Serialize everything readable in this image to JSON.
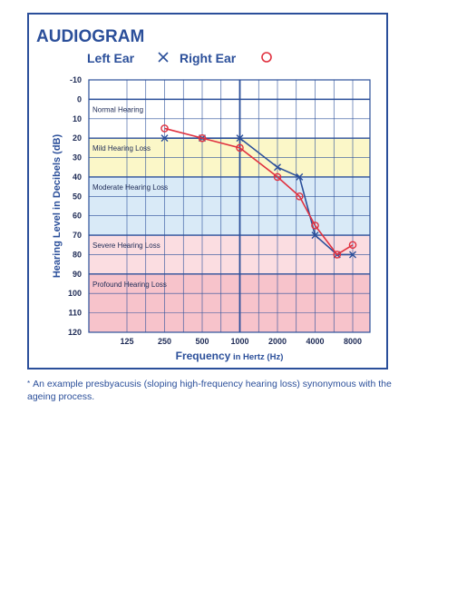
{
  "chart_data": {
    "type": "line",
    "title": "AUDIOGRAM",
    "legend": [
      {
        "name": "Left Ear",
        "marker": "×",
        "color": "#2b4f9a"
      },
      {
        "name": "Right Ear",
        "marker": "○",
        "color": "#e0313f"
      }
    ],
    "xlabel_main": "Frequency",
    "xlabel_sub": " in Hertz (Hz)",
    "ylabel": "Hearing Level in Decibels (dB)",
    "x_tick_labels": [
      "125",
      "250",
      "500",
      "1000",
      "2000",
      "4000",
      "8000"
    ],
    "x_tick_values": [
      125,
      250,
      500,
      1000,
      2000,
      4000,
      8000
    ],
    "x_scale": "log",
    "y_tick_labels": [
      "-10",
      "0",
      "10",
      "20",
      "30",
      "40",
      "50",
      "60",
      "70",
      "80",
      "90",
      "100",
      "110",
      "120"
    ],
    "ylim": [
      -10,
      120
    ],
    "y_inverted": true,
    "grid": true,
    "bands": [
      {
        "label": "Normal Hearing",
        "from": 0,
        "to": 20,
        "color": "#ffffff"
      },
      {
        "label": "Mild Hearing Loss",
        "from": 20,
        "to": 40,
        "color": "#fbf7c8"
      },
      {
        "label": "Moderate Hearing Loss",
        "from": 40,
        "to": 70,
        "color": "#d9eaf7"
      },
      {
        "label": "Severe Hearing Loss",
        "from": 70,
        "to": 90,
        "color": "#fbdde1"
      },
      {
        "label": "Profound Hearing Loss",
        "from": 90,
        "to": 120,
        "color": "#f7c3cb"
      }
    ],
    "series": [
      {
        "name": "Left Ear",
        "color": "#2b4f9a",
        "x": [
          250,
          500,
          1000,
          2000,
          3000,
          4000,
          6000,
          8000
        ],
        "y": [
          20,
          20,
          20,
          35,
          40,
          70,
          80,
          80
        ]
      },
      {
        "name": "Right Ear",
        "color": "#e0313f",
        "x": [
          250,
          500,
          1000,
          2000,
          3000,
          4000,
          6000,
          8000
        ],
        "y": [
          15,
          20,
          25,
          40,
          50,
          65,
          80,
          75
        ]
      }
    ]
  },
  "footnote": {
    "marker": "*",
    "text": "An example presbyacusis (sloping high-frequency hearing loss) synonymous with the ageing process."
  }
}
